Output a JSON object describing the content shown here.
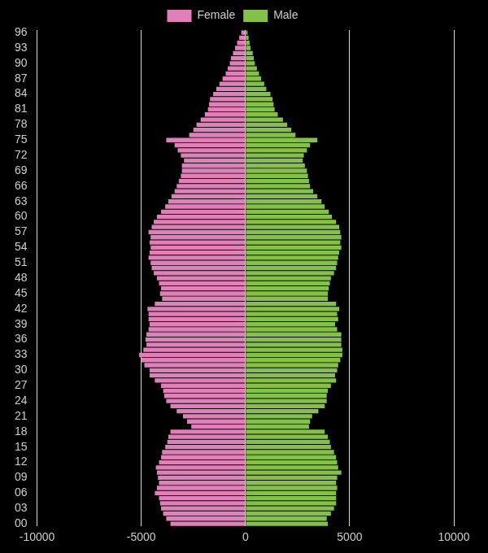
{
  "chart_data": {
    "type": "bar",
    "orientation": "horizontal",
    "stacked": true,
    "grid": true,
    "legend": "top",
    "categories": [
      "00",
      null,
      null,
      "03",
      null,
      null,
      "06",
      null,
      null,
      "09",
      null,
      null,
      "12",
      null,
      null,
      "15",
      null,
      null,
      "18",
      null,
      null,
      "21",
      null,
      null,
      "24",
      null,
      null,
      "27",
      null,
      null,
      "30",
      null,
      null,
      "33",
      null,
      null,
      "36",
      null,
      null,
      "39",
      null,
      null,
      "42",
      null,
      null,
      "45",
      null,
      null,
      "48",
      null,
      null,
      "51",
      null,
      null,
      "54",
      null,
      null,
      "57",
      null,
      null,
      "60",
      null,
      null,
      "63",
      null,
      null,
      "66",
      null,
      null,
      "69",
      null,
      null,
      "72",
      null,
      null,
      "75",
      null,
      null,
      "78",
      null,
      null,
      "81",
      null,
      null,
      "84",
      null,
      null,
      "87",
      null,
      null,
      "90",
      null,
      null,
      "93",
      null,
      null,
      "96"
    ],
    "series": [
      {
        "name": "Female",
        "color": "#df80b9",
        "values": [
          -3600,
          -3800,
          -3950,
          -4050,
          -4100,
          -4150,
          -4350,
          -4250,
          -4150,
          -4200,
          -4250,
          -4300,
          -4150,
          -4050,
          -4000,
          -3850,
          -3750,
          -3700,
          -3600,
          -2600,
          -2800,
          -3000,
          -3300,
          -3600,
          -3800,
          -3900,
          -3950,
          -4050,
          -4350,
          -4600,
          -4600,
          -4850,
          -5000,
          -5100,
          -4900,
          -4750,
          -4800,
          -4750,
          -4650,
          -4600,
          -4650,
          -4650,
          -4700,
          -4350,
          -4000,
          -4100,
          -4050,
          -4150,
          -4250,
          -4400,
          -4500,
          -4550,
          -4650,
          -4600,
          -4550,
          -4600,
          -4550,
          -4650,
          -4500,
          -4400,
          -4250,
          -4050,
          -3850,
          -3700,
          -3550,
          -3400,
          -3300,
          -3200,
          -3100,
          -3050,
          -3050,
          -2950,
          -3100,
          -3250,
          -3400,
          -3800,
          -2700,
          -2500,
          -2350,
          -2150,
          -1950,
          -1800,
          -1750,
          -1700,
          -1550,
          -1400,
          -1250,
          -1100,
          -950,
          -850,
          -750,
          -700,
          -600,
          -500,
          -400,
          -300,
          -200
        ]
      },
      {
        "name": "Male",
        "color": "#84c04a",
        "values": [
          3950,
          3900,
          4100,
          4250,
          4350,
          4350,
          4350,
          4400,
          4350,
          4400,
          4600,
          4450,
          4400,
          4350,
          4250,
          4100,
          4050,
          3950,
          3800,
          3050,
          3100,
          3200,
          3500,
          3800,
          3900,
          3900,
          3950,
          4100,
          4350,
          4300,
          4400,
          4450,
          4550,
          4650,
          4650,
          4600,
          4600,
          4600,
          4400,
          4300,
          4450,
          4400,
          4500,
          4350,
          3950,
          3950,
          4000,
          4050,
          4100,
          4250,
          4350,
          4400,
          4450,
          4500,
          4600,
          4550,
          4600,
          4550,
          4500,
          4350,
          4150,
          4000,
          3800,
          3650,
          3450,
          3250,
          3100,
          3050,
          3000,
          2950,
          2850,
          2750,
          2800,
          2950,
          3100,
          3450,
          2400,
          2200,
          2000,
          1800,
          1550,
          1400,
          1350,
          1300,
          1200,
          1000,
          900,
          750,
          650,
          550,
          450,
          400,
          350,
          250,
          200,
          150,
          100
        ]
      }
    ],
    "xlim": [
      -10000,
      10000
    ],
    "xticks": [
      -10000,
      -5000,
      0,
      5000,
      10000
    ]
  }
}
